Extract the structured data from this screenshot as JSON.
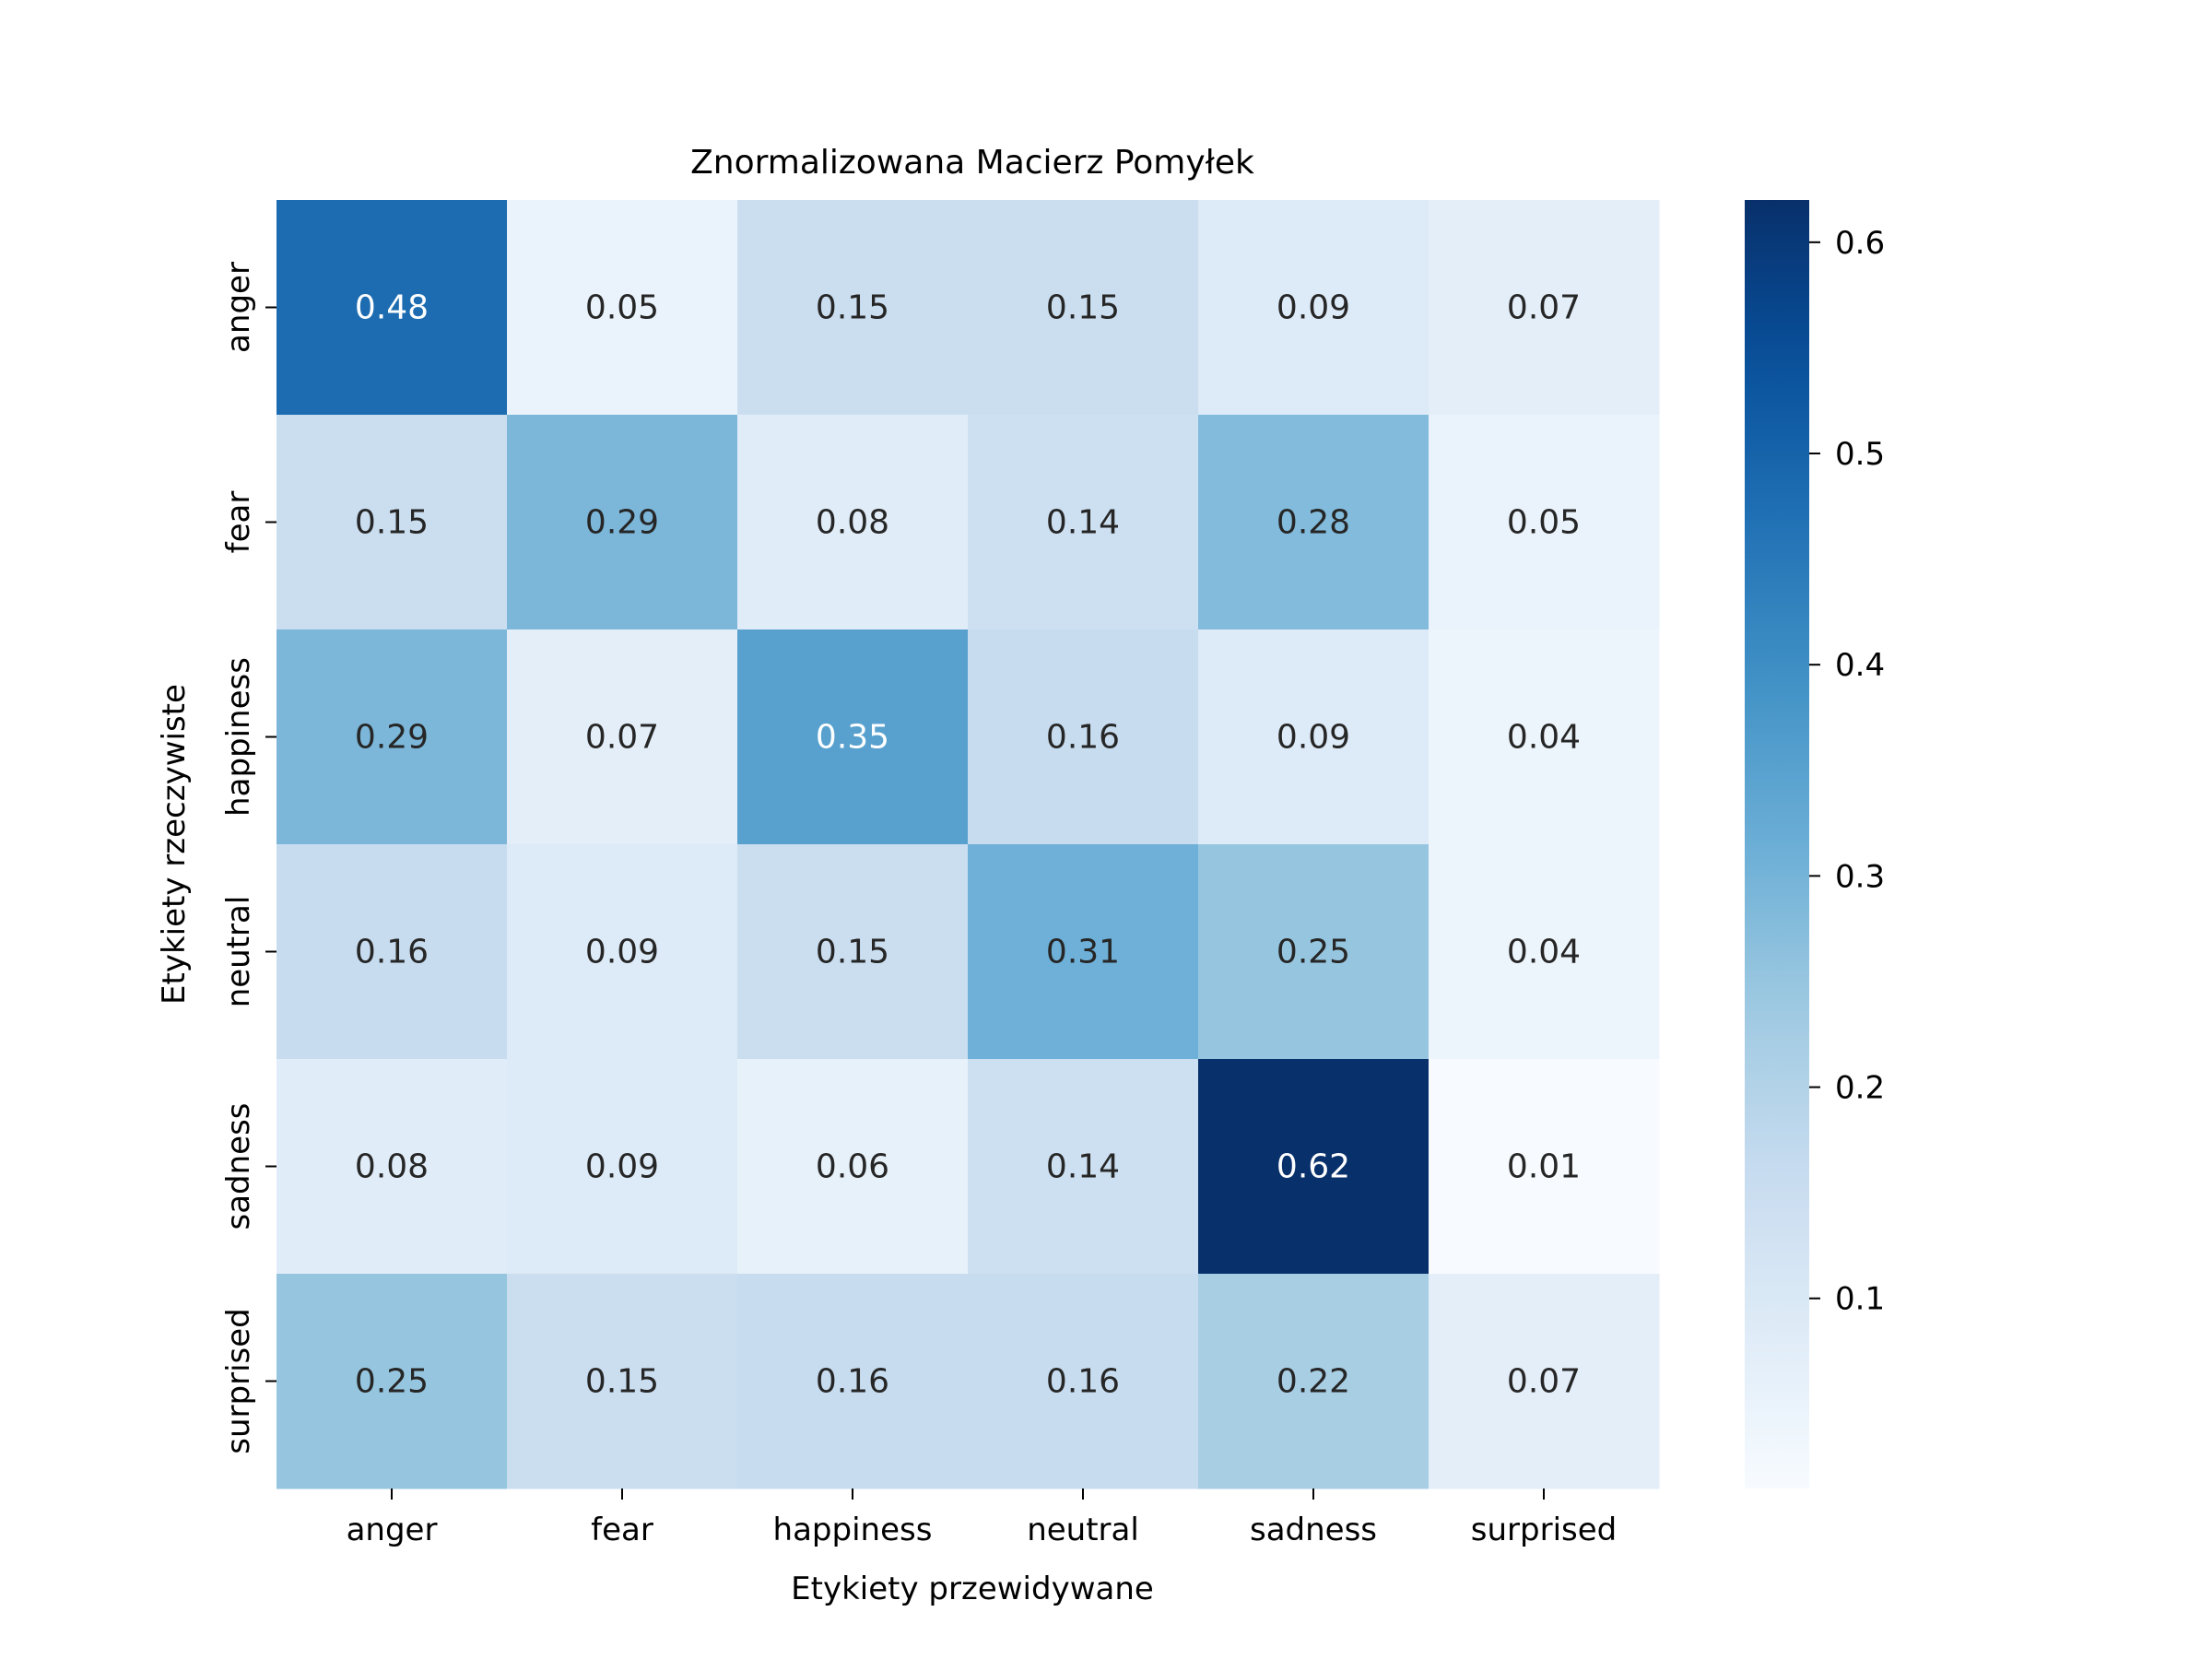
{
  "chart_data": {
    "type": "heatmap",
    "title": "Znormalizowana Macierz Pomyłek",
    "xlabel": "Etykiety przewidywane",
    "ylabel": "Etykiety rzeczywiste",
    "x_categories": [
      "anger",
      "fear",
      "happiness",
      "neutral",
      "sadness",
      "surprised"
    ],
    "y_categories": [
      "anger",
      "fear",
      "happiness",
      "neutral",
      "sadness",
      "surprised"
    ],
    "values": [
      [
        0.48,
        0.05,
        0.15,
        0.15,
        0.09,
        0.07
      ],
      [
        0.15,
        0.29,
        0.08,
        0.14,
        0.28,
        0.05
      ],
      [
        0.29,
        0.07,
        0.35,
        0.16,
        0.09,
        0.04
      ],
      [
        0.16,
        0.09,
        0.15,
        0.31,
        0.25,
        0.04
      ],
      [
        0.08,
        0.09,
        0.06,
        0.14,
        0.62,
        0.01
      ],
      [
        0.25,
        0.15,
        0.16,
        0.16,
        0.22,
        0.07
      ]
    ],
    "colormap": "Blues",
    "colorbar": {
      "vmin": 0.01,
      "vmax": 0.62,
      "ticks": [
        0.1,
        0.2,
        0.3,
        0.4,
        0.5,
        0.6
      ],
      "tick_labels": [
        "0.1",
        "0.2",
        "0.3",
        "0.4",
        "0.5",
        "0.6"
      ]
    },
    "grid": false,
    "legend": "colorbar-right"
  }
}
